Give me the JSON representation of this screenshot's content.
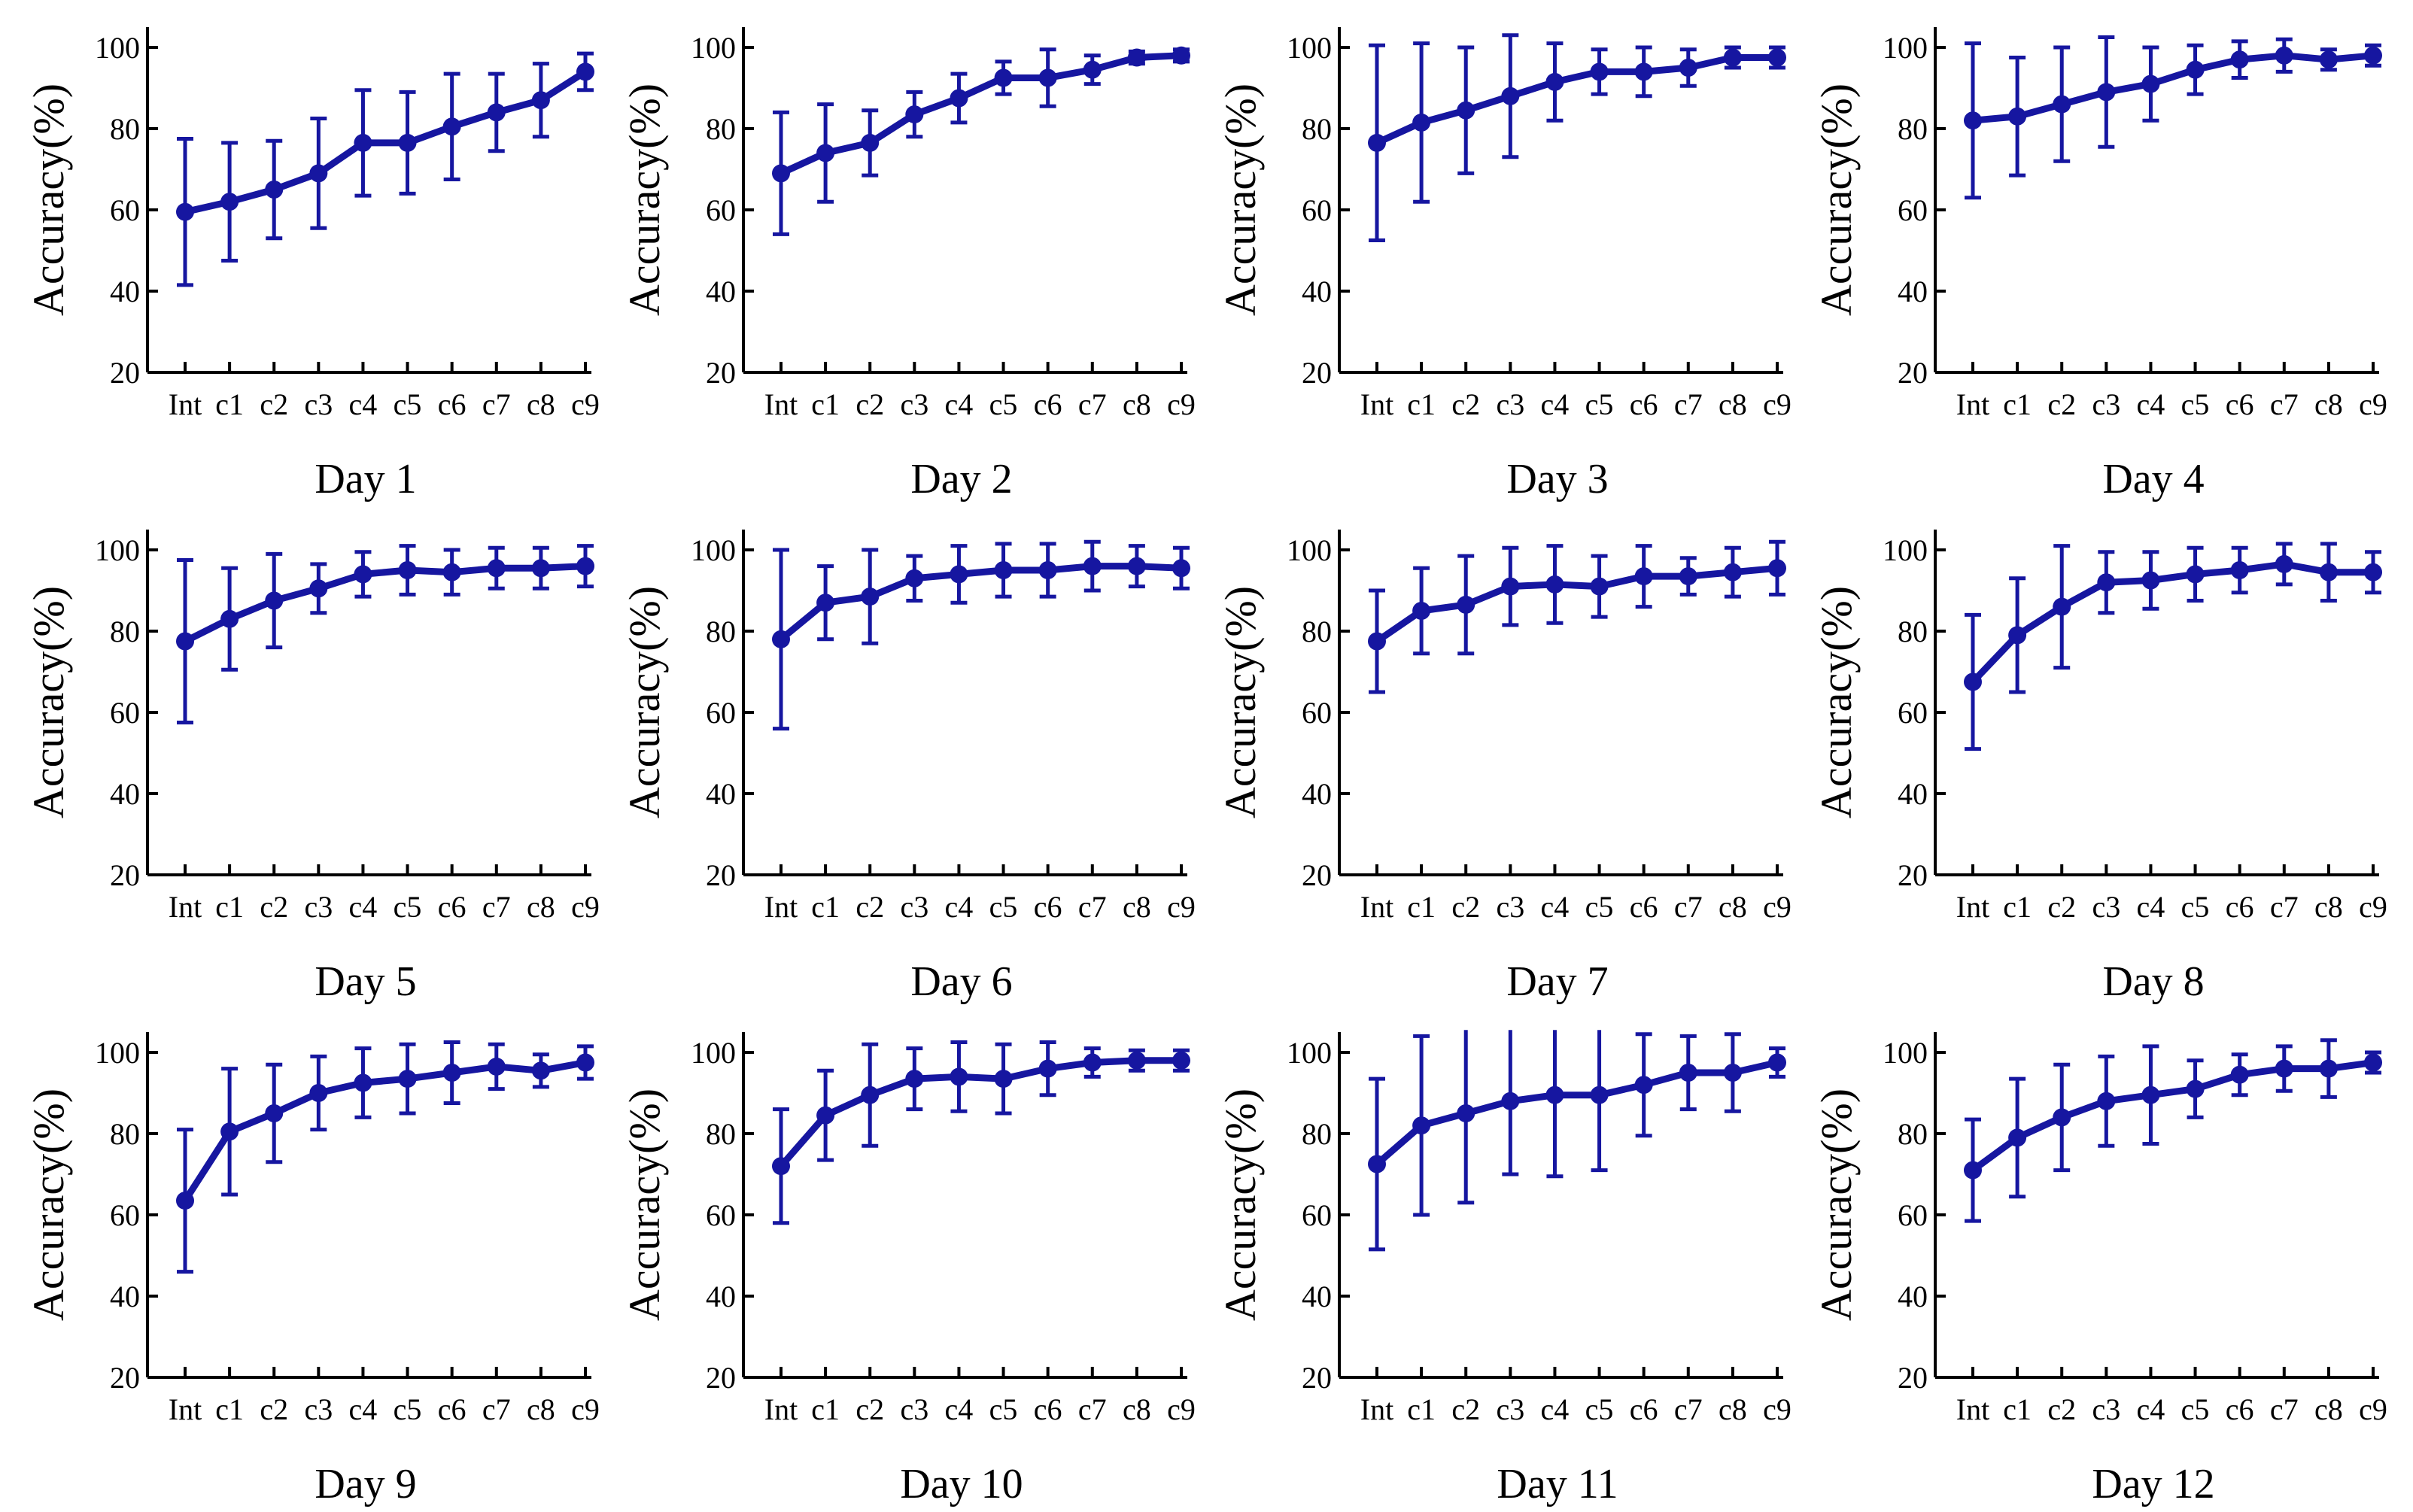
{
  "colors": {
    "series": "#1616a0",
    "axis": "#000000"
  },
  "chart_data": [
    {
      "type": "line",
      "title": "Day 1",
      "ylabel": "Accuracy(%)",
      "xlabel": "",
      "ylim": [
        20,
        105
      ],
      "yticks": [
        20,
        40,
        60,
        80,
        100
      ],
      "categories": [
        "Int",
        "c1",
        "c2",
        "c3",
        "c4",
        "c5",
        "c6",
        "c7",
        "c8",
        "c9"
      ],
      "series": [
        {
          "name": "Accuracy",
          "values": [
            59.5,
            62,
            65,
            69,
            76.5,
            76.5,
            80.5,
            84,
            87,
            94
          ],
          "errors": [
            18,
            14.5,
            12,
            13.5,
            13,
            12.5,
            13,
            9.5,
            9,
            4.5
          ]
        }
      ]
    },
    {
      "type": "line",
      "title": "Day 2",
      "ylabel": "Accuracy(%)",
      "xlabel": "",
      "ylim": [
        20,
        105
      ],
      "yticks": [
        20,
        40,
        60,
        80,
        100
      ],
      "categories": [
        "Int",
        "c1",
        "c2",
        "c3",
        "c4",
        "c5",
        "c6",
        "c7",
        "c8",
        "c9"
      ],
      "series": [
        {
          "name": "Accuracy",
          "values": [
            69,
            74,
            76.5,
            83.5,
            87.5,
            92.5,
            92.5,
            94.5,
            97.5,
            98
          ],
          "errors": [
            15,
            12,
            8,
            5.5,
            6,
            4,
            7,
            3.5,
            1.5,
            1.5
          ]
        }
      ]
    },
    {
      "type": "line",
      "title": "Day 3",
      "ylabel": "Accuracy(%)",
      "xlabel": "",
      "ylim": [
        20,
        105
      ],
      "yticks": [
        20,
        40,
        60,
        80,
        100
      ],
      "categories": [
        "Int",
        "c1",
        "c2",
        "c3",
        "c4",
        "c5",
        "c6",
        "c7",
        "c8",
        "c9"
      ],
      "series": [
        {
          "name": "Accuracy",
          "values": [
            76.5,
            81.5,
            84.5,
            88,
            91.5,
            94,
            94,
            95,
            97.5,
            97.5
          ],
          "errors": [
            24,
            19.5,
            15.5,
            15,
            9.5,
            5.5,
            6,
            4.5,
            2.5,
            2.5
          ]
        }
      ]
    },
    {
      "type": "line",
      "title": "Day 4",
      "ylabel": "Accuracy(%)",
      "xlabel": "",
      "ylim": [
        20,
        105
      ],
      "yticks": [
        20,
        40,
        60,
        80,
        100
      ],
      "categories": [
        "Int",
        "c1",
        "c2",
        "c3",
        "c4",
        "c5",
        "c6",
        "c7",
        "c8",
        "c9"
      ],
      "series": [
        {
          "name": "Accuracy",
          "values": [
            82,
            83,
            86,
            89,
            91,
            94.5,
            97,
            98,
            97,
            98
          ],
          "errors": [
            19,
            14.5,
            14,
            13.5,
            9,
            6,
            4.5,
            4,
            2.5,
            2.5
          ]
        }
      ]
    },
    {
      "type": "line",
      "title": "Day 5",
      "ylabel": "Accuracy(%)",
      "xlabel": "",
      "ylim": [
        20,
        105
      ],
      "yticks": [
        20,
        40,
        60,
        80,
        100
      ],
      "categories": [
        "Int",
        "c1",
        "c2",
        "c3",
        "c4",
        "c5",
        "c6",
        "c7",
        "c8",
        "c9"
      ],
      "series": [
        {
          "name": "Accuracy",
          "values": [
            77.5,
            83,
            87.5,
            90.5,
            94,
            95,
            94.5,
            95.5,
            95.5,
            96
          ],
          "errors": [
            20,
            12.5,
            11.5,
            6,
            5.5,
            6,
            5.5,
            5,
            5,
            5
          ]
        }
      ]
    },
    {
      "type": "line",
      "title": "Day 6",
      "ylabel": "Accuracy(%)",
      "xlabel": "",
      "ylim": [
        20,
        105
      ],
      "yticks": [
        20,
        40,
        60,
        80,
        100
      ],
      "categories": [
        "Int",
        "c1",
        "c2",
        "c3",
        "c4",
        "c5",
        "c6",
        "c7",
        "c8",
        "c9"
      ],
      "series": [
        {
          "name": "Accuracy",
          "values": [
            78,
            87,
            88.5,
            93,
            94,
            95,
            95,
            96,
            96,
            95.5
          ],
          "errors": [
            22,
            9,
            11.5,
            5.5,
            7,
            6.5,
            6.5,
            6,
            5,
            5
          ]
        }
      ]
    },
    {
      "type": "line",
      "title": "Day 7",
      "ylabel": "Accuracy(%)",
      "xlabel": "",
      "ylim": [
        20,
        105
      ],
      "yticks": [
        20,
        40,
        60,
        80,
        100
      ],
      "categories": [
        "Int",
        "c1",
        "c2",
        "c3",
        "c4",
        "c5",
        "c6",
        "c7",
        "c8",
        "c9"
      ],
      "series": [
        {
          "name": "Accuracy",
          "values": [
            77.5,
            85,
            86.5,
            91,
            91.5,
            91,
            93.5,
            93.5,
            94.5,
            95.5
          ],
          "errors": [
            12.5,
            10.5,
            12,
            9.5,
            9.5,
            7.5,
            7.5,
            4.5,
            6,
            6.5
          ]
        }
      ]
    },
    {
      "type": "line",
      "title": "Day 8",
      "ylabel": "Accuracy(%)",
      "xlabel": "",
      "ylim": [
        20,
        105
      ],
      "yticks": [
        20,
        40,
        60,
        80,
        100
      ],
      "categories": [
        "Int",
        "c1",
        "c2",
        "c3",
        "c4",
        "c5",
        "c6",
        "c7",
        "c8",
        "c9"
      ],
      "series": [
        {
          "name": "Accuracy",
          "values": [
            67.5,
            79,
            86,
            92,
            92.5,
            94,
            95,
            96.5,
            94.5,
            94.5
          ],
          "errors": [
            16.5,
            14,
            15,
            7.5,
            7,
            6.5,
            5.5,
            5,
            7,
            5
          ]
        }
      ]
    },
    {
      "type": "line",
      "title": "Day 9",
      "ylabel": "Accuracy(%)",
      "xlabel": "",
      "ylim": [
        20,
        105
      ],
      "yticks": [
        20,
        40,
        60,
        80,
        100
      ],
      "categories": [
        "Int",
        "c1",
        "c2",
        "c3",
        "c4",
        "c5",
        "c6",
        "c7",
        "c8",
        "c9"
      ],
      "series": [
        {
          "name": "Accuracy",
          "values": [
            63.5,
            80.5,
            85,
            90,
            92.5,
            93.5,
            95,
            96.5,
            95.5,
            97.5
          ],
          "errors": [
            17.5,
            15.5,
            12,
            9,
            8.5,
            8.5,
            7.5,
            5.5,
            4,
            4
          ]
        }
      ]
    },
    {
      "type": "line",
      "title": "Day 10",
      "ylabel": "Accuracy(%)",
      "xlabel": "",
      "ylim": [
        20,
        105
      ],
      "yticks": [
        20,
        40,
        60,
        80,
        100
      ],
      "categories": [
        "Int",
        "c1",
        "c2",
        "c3",
        "c4",
        "c5",
        "c6",
        "c7",
        "c8",
        "c9"
      ],
      "series": [
        {
          "name": "Accuracy",
          "values": [
            72,
            84.5,
            89.5,
            93.5,
            94,
            93.5,
            96,
            97.5,
            98,
            98
          ],
          "errors": [
            14,
            11,
            12.5,
            7.5,
            8.5,
            8.5,
            6.5,
            3.5,
            2.5,
            2.5
          ]
        }
      ]
    },
    {
      "type": "line",
      "title": "Day 11",
      "ylabel": "Accuracy(%)",
      "xlabel": "",
      "ylim": [
        20,
        105
      ],
      "yticks": [
        20,
        40,
        60,
        80,
        100
      ],
      "categories": [
        "Int",
        "c1",
        "c2",
        "c3",
        "c4",
        "c5",
        "c6",
        "c7",
        "c8",
        "c9"
      ],
      "series": [
        {
          "name": "Accuracy",
          "values": [
            72.5,
            82,
            85,
            88,
            89.5,
            89.5,
            92,
            95,
            95,
            97.5
          ],
          "errors": [
            21,
            22,
            22,
            18,
            20,
            18.5,
            12.5,
            9,
            9.5,
            3.5
          ]
        }
      ]
    },
    {
      "type": "line",
      "title": "Day 12",
      "ylabel": "Accuracy(%)",
      "xlabel": "",
      "ylim": [
        20,
        105
      ],
      "yticks": [
        20,
        40,
        60,
        80,
        100
      ],
      "categories": [
        "Int",
        "c1",
        "c2",
        "c3",
        "c4",
        "c5",
        "c6",
        "c7",
        "c8",
        "c9"
      ],
      "series": [
        {
          "name": "Accuracy",
          "values": [
            71,
            79,
            84,
            88,
            89.5,
            91,
            94.5,
            96,
            96,
            97.5
          ],
          "errors": [
            12.5,
            14.5,
            13,
            11,
            12,
            7,
            5,
            5.5,
            7,
            2.5
          ]
        }
      ]
    }
  ]
}
